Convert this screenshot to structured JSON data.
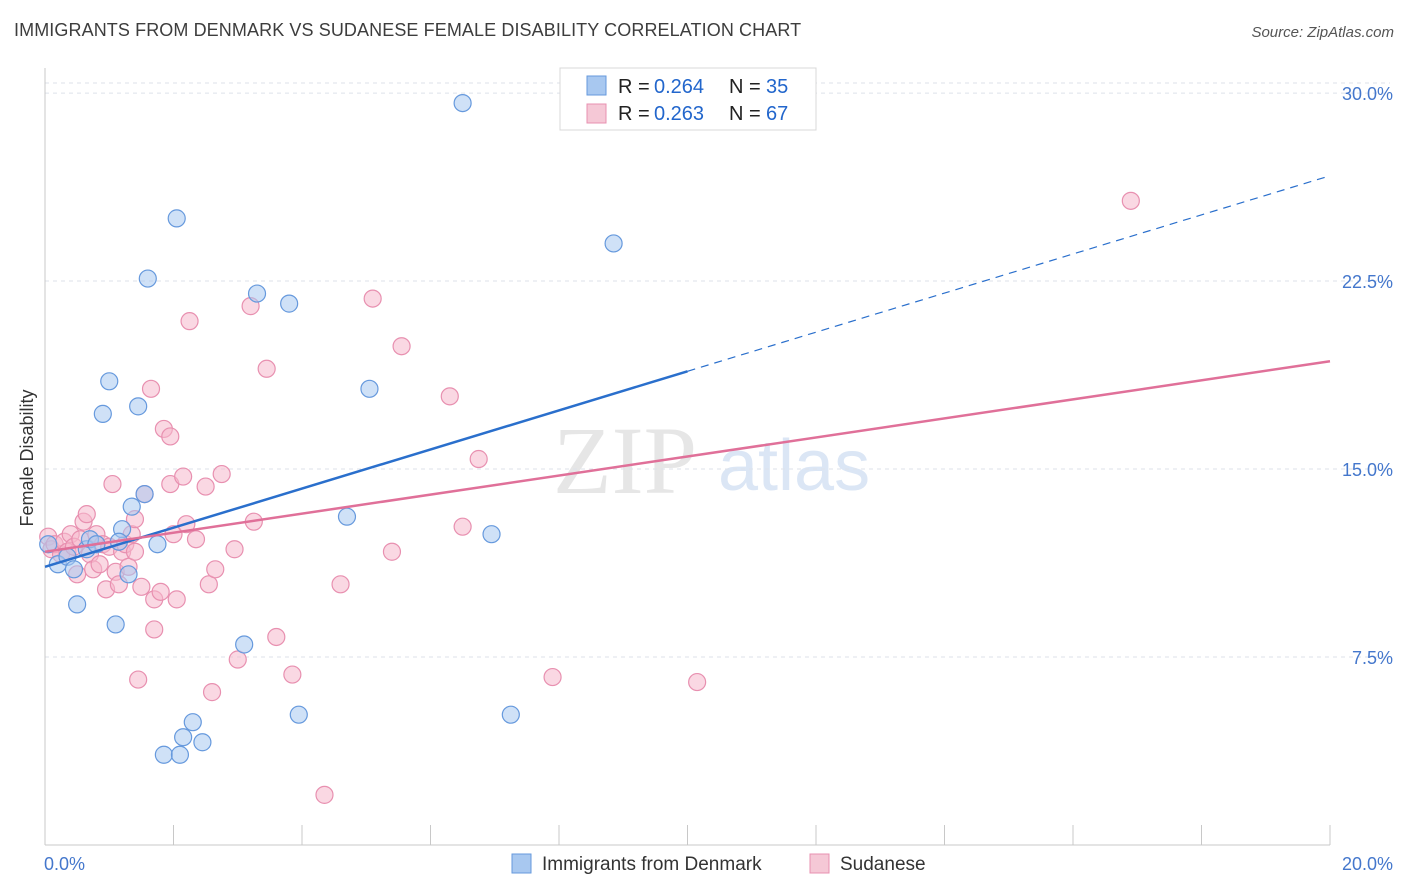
{
  "title": "IMMIGRANTS FROM DENMARK VS SUDANESE FEMALE DISABILITY CORRELATION CHART",
  "source": "Source: ZipAtlas.com",
  "colors": {
    "denmark_fill": "#a8c8f0",
    "denmark_stroke": "#6699dd",
    "denmark_line": "#2a6fcc",
    "sudanese_fill": "#f5b8cc",
    "sudanese_stroke": "#e890b0",
    "sudanese_line": "#e07099",
    "grid": "#dde2ea",
    "tick_label": "#4477cc"
  },
  "legend": {
    "rows": [
      {
        "r_label": "R =",
        "r_value": "0.264",
        "n_label": "N =",
        "n_value": "35"
      },
      {
        "r_label": "R =",
        "r_value": "0.263",
        "n_label": "N =",
        "n_value": "67"
      }
    ]
  },
  "bottom_legend": [
    "Immigrants from Denmark",
    "Sudanese"
  ],
  "watermark": {
    "zip": "ZIP",
    "atlas": "atlas"
  },
  "chart_data": {
    "type": "scatter",
    "title": "IMMIGRANTS FROM DENMARK VS SUDANESE FEMALE DISABILITY CORRELATION CHART",
    "xlabel": "",
    "ylabel": "Female Disability",
    "xlim": [
      0,
      20
    ],
    "ylim": [
      0,
      31
    ],
    "x_tick_labels": [
      {
        "value": 0,
        "label": "0.0%"
      },
      {
        "value": 20,
        "label": "20.0%"
      }
    ],
    "y_ticks": [
      {
        "value": 7.5,
        "label": "7.5%"
      },
      {
        "value": 15,
        "label": "15.0%"
      },
      {
        "value": 22.5,
        "label": "22.5%"
      },
      {
        "value": 30,
        "label": "30.0%"
      }
    ],
    "grid": true,
    "legend_position": "top-center",
    "series": [
      {
        "name": "Immigrants from Denmark",
        "r": 0.264,
        "n": 35,
        "points": [
          [
            0.05,
            12.0
          ],
          [
            0.2,
            11.2
          ],
          [
            0.35,
            11.5
          ],
          [
            0.45,
            11.0
          ],
          [
            0.5,
            9.6
          ],
          [
            0.65,
            11.8
          ],
          [
            0.7,
            12.2
          ],
          [
            0.8,
            12.0
          ],
          [
            0.9,
            17.2
          ],
          [
            1.0,
            18.5
          ],
          [
            1.1,
            8.8
          ],
          [
            1.2,
            12.6
          ],
          [
            1.3,
            10.8
          ],
          [
            1.35,
            13.5
          ],
          [
            1.45,
            17.5
          ],
          [
            1.55,
            14.0
          ],
          [
            1.6,
            22.6
          ],
          [
            1.75,
            12.0
          ],
          [
            1.85,
            3.6
          ],
          [
            2.05,
            25.0
          ],
          [
            2.1,
            3.6
          ],
          [
            2.15,
            4.3
          ],
          [
            2.3,
            4.9
          ],
          [
            2.45,
            4.1
          ],
          [
            3.1,
            8.0
          ],
          [
            3.3,
            22.0
          ],
          [
            3.8,
            21.6
          ],
          [
            3.95,
            5.2
          ],
          [
            4.7,
            13.1
          ],
          [
            5.05,
            18.2
          ],
          [
            6.5,
            29.6
          ],
          [
            6.95,
            12.4
          ],
          [
            7.25,
            5.2
          ],
          [
            8.85,
            24.0
          ],
          [
            1.15,
            12.1
          ]
        ],
        "trend": {
          "x_start": 0,
          "y_start": 11.1,
          "x_solid_end": 10.0,
          "y_solid_end": 18.9,
          "x_end": 20,
          "y_end": 26.7
        }
      },
      {
        "name": "Sudanese",
        "r": 0.263,
        "n": 67,
        "points": [
          [
            0.05,
            12.3
          ],
          [
            0.1,
            11.8
          ],
          [
            0.15,
            12.0
          ],
          [
            0.25,
            11.6
          ],
          [
            0.3,
            12.1
          ],
          [
            0.35,
            11.7
          ],
          [
            0.4,
            12.4
          ],
          [
            0.45,
            11.9
          ],
          [
            0.5,
            10.8
          ],
          [
            0.55,
            12.2
          ],
          [
            0.6,
            12.9
          ],
          [
            0.65,
            13.2
          ],
          [
            0.7,
            11.6
          ],
          [
            0.75,
            11.0
          ],
          [
            0.8,
            12.4
          ],
          [
            0.85,
            11.2
          ],
          [
            0.9,
            12.0
          ],
          [
            0.95,
            10.2
          ],
          [
            1.0,
            11.9
          ],
          [
            1.05,
            14.4
          ],
          [
            1.1,
            10.9
          ],
          [
            1.15,
            10.4
          ],
          [
            1.2,
            11.7
          ],
          [
            1.25,
            12.0
          ],
          [
            1.3,
            11.1
          ],
          [
            1.35,
            12.4
          ],
          [
            1.4,
            13.0
          ],
          [
            1.4,
            11.7
          ],
          [
            1.45,
            6.6
          ],
          [
            1.5,
            10.3
          ],
          [
            1.55,
            14.0
          ],
          [
            1.65,
            18.2
          ],
          [
            1.7,
            8.6
          ],
          [
            1.7,
            9.8
          ],
          [
            1.8,
            10.1
          ],
          [
            1.85,
            16.6
          ],
          [
            1.95,
            16.3
          ],
          [
            1.95,
            14.4
          ],
          [
            2.0,
            12.4
          ],
          [
            2.05,
            9.8
          ],
          [
            2.15,
            14.7
          ],
          [
            2.2,
            12.8
          ],
          [
            2.25,
            20.9
          ],
          [
            2.35,
            12.2
          ],
          [
            2.5,
            14.3
          ],
          [
            2.55,
            10.4
          ],
          [
            2.6,
            6.1
          ],
          [
            2.65,
            11.0
          ],
          [
            2.75,
            14.8
          ],
          [
            2.95,
            11.8
          ],
          [
            3.0,
            7.4
          ],
          [
            3.2,
            21.5
          ],
          [
            3.25,
            12.9
          ],
          [
            3.45,
            19.0
          ],
          [
            3.6,
            8.3
          ],
          [
            3.85,
            6.8
          ],
          [
            4.35,
            2.0
          ],
          [
            4.6,
            10.4
          ],
          [
            5.1,
            21.8
          ],
          [
            5.4,
            11.7
          ],
          [
            5.55,
            19.9
          ],
          [
            6.3,
            17.9
          ],
          [
            6.5,
            12.7
          ],
          [
            6.75,
            15.4
          ],
          [
            7.9,
            6.7
          ],
          [
            10.15,
            6.5
          ],
          [
            16.9,
            25.7
          ]
        ],
        "trend": {
          "x_start": 0,
          "y_start": 11.7,
          "x_end": 20,
          "y_end": 19.3
        }
      }
    ]
  }
}
